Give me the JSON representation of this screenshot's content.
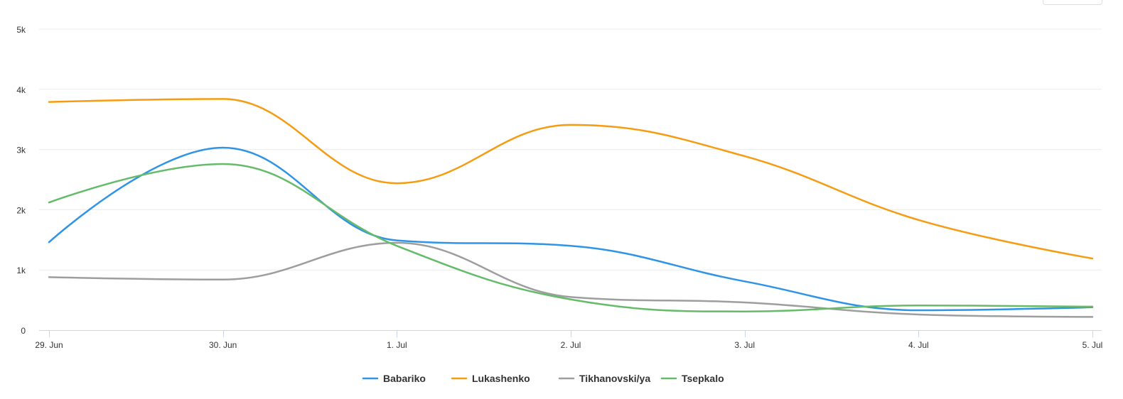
{
  "chart_data": {
    "type": "line",
    "title": "",
    "xlabel": "",
    "ylabel": "",
    "categories": [
      "29. Jun",
      "30. Jun",
      "1. Jul",
      "2. Jul",
      "3. Jul",
      "4. Jul",
      "5. Jul"
    ],
    "ylim": [
      0,
      5000
    ],
    "y_ticks": [
      0,
      1000,
      2000,
      3000,
      4000,
      5000
    ],
    "y_tick_labels": [
      "0",
      "1k",
      "2k",
      "3k",
      "4k",
      "5k"
    ],
    "grid": true,
    "legend_position": "bottom-center",
    "series": [
      {
        "name": "Babariko",
        "color": "#2f94e6",
        "values": [
          1460,
          3030,
          1490,
          1400,
          810,
          330,
          380
        ]
      },
      {
        "name": "Lukashenko",
        "color": "#f59c12",
        "values": [
          3790,
          3840,
          2440,
          3410,
          2890,
          1830,
          1190
        ]
      },
      {
        "name": "Tikhanovski/ya",
        "color": "#9e9e9e",
        "values": [
          880,
          840,
          1450,
          550,
          460,
          260,
          220
        ]
      },
      {
        "name": "Tsepkalo",
        "color": "#66bb6a",
        "values": [
          2120,
          2760,
          1400,
          510,
          310,
          410,
          390
        ]
      }
    ]
  }
}
